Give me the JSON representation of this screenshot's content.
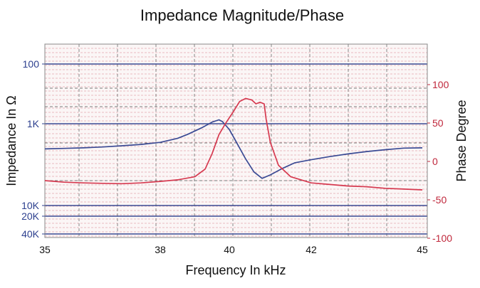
{
  "chart_data": {
    "type": "line",
    "title": "Impedance Magnitude/Phase",
    "xlabel": "Frequency In kHz",
    "ylabel_left": "Impedance In Ω",
    "ylabel_right": "Phase Degree",
    "x_ticks": [
      {
        "value": 35,
        "label": "35"
      },
      {
        "value": 38,
        "label": "38"
      },
      {
        "value": 40,
        "label": "40"
      },
      {
        "value": 42,
        "label": "42"
      },
      {
        "value": 45,
        "label": "45"
      }
    ],
    "left_ticks": [
      {
        "label": "100"
      },
      {
        "label": "1K"
      },
      {
        "label": "10K"
      },
      {
        "label": "20K"
      },
      {
        "label": "40K"
      }
    ],
    "right_ticks": [
      {
        "value": 100,
        "label": "100"
      },
      {
        "value": 50,
        "label": "50"
      },
      {
        "value": 0,
        "label": "0"
      },
      {
        "value": -50,
        "label": "-50"
      },
      {
        "value": -100,
        "label": "-100"
      }
    ],
    "left_scale": "log, reversed",
    "right_scale": "linear",
    "right_range": [
      -100,
      140
    ],
    "grid": true,
    "colors": {
      "impedance": "#3a4a94",
      "phase": "#d6394f",
      "left_tick_text": "#2c3f8e",
      "right_tick_text": "#c0283c",
      "grid": "#7a7a7a",
      "plot_background": "#fbf6f6"
    },
    "series": [
      {
        "name": "",
        "role": "impedance",
        "axis": "left",
        "points": [
          [
            35.0,
            2640
          ],
          [
            35.5,
            2590
          ],
          [
            36.0,
            2530
          ],
          [
            36.5,
            2450
          ],
          [
            37.0,
            2340
          ],
          [
            37.5,
            2220
          ],
          [
            38.0,
            2050
          ],
          [
            38.5,
            1760
          ],
          [
            38.8,
            1500
          ],
          [
            39.2,
            1170
          ],
          [
            39.5,
            940
          ],
          [
            39.7,
            860
          ],
          [
            39.8,
            920
          ],
          [
            40.0,
            1250
          ],
          [
            40.2,
            2200
          ],
          [
            40.4,
            3900
          ],
          [
            40.6,
            6400
          ],
          [
            40.8,
            8200
          ],
          [
            41.0,
            7200
          ],
          [
            41.3,
            5600
          ],
          [
            41.6,
            4500
          ],
          [
            42.0,
            4000
          ],
          [
            42.5,
            3550
          ],
          [
            43.0,
            3200
          ],
          [
            43.5,
            2920
          ],
          [
            44.0,
            2720
          ],
          [
            44.5,
            2560
          ],
          [
            45.0,
            2530
          ]
        ]
      },
      {
        "name": "",
        "role": "phase",
        "axis": "right",
        "points": [
          [
            35.0,
            -25
          ],
          [
            35.5,
            -27
          ],
          [
            36.0,
            -28
          ],
          [
            36.5,
            -28.5
          ],
          [
            37.0,
            -29
          ],
          [
            37.5,
            -28
          ],
          [
            38.0,
            -26
          ],
          [
            38.5,
            -24
          ],
          [
            39.0,
            -20
          ],
          [
            39.3,
            -10
          ],
          [
            39.5,
            10
          ],
          [
            39.7,
            35
          ],
          [
            39.9,
            50
          ],
          [
            40.1,
            65
          ],
          [
            40.25,
            78
          ],
          [
            40.4,
            82
          ],
          [
            40.55,
            80
          ],
          [
            40.65,
            75
          ],
          [
            40.75,
            77
          ],
          [
            40.85,
            75
          ],
          [
            40.9,
            55
          ],
          [
            41.0,
            25
          ],
          [
            41.2,
            -5
          ],
          [
            41.5,
            -20
          ],
          [
            42.0,
            -28
          ],
          [
            42.5,
            -30
          ],
          [
            43.0,
            -32
          ],
          [
            43.5,
            -33
          ],
          [
            44.0,
            -35
          ],
          [
            44.5,
            -36
          ],
          [
            45.0,
            -37
          ]
        ]
      }
    ]
  }
}
